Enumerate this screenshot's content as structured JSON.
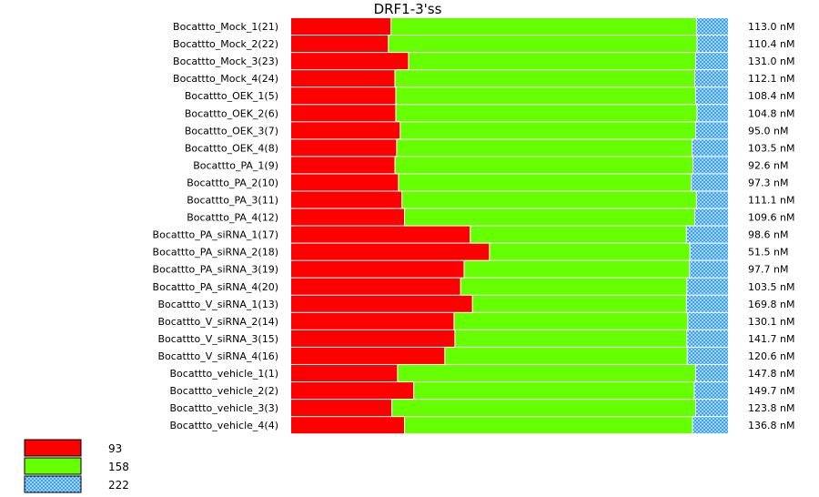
{
  "chart_data": {
    "type": "bar",
    "orientation": "horizontal",
    "stacked": true,
    "normalized_to_percent": true,
    "title": "DRF1-3'ss",
    "legend_placement": "bottom-left",
    "grid": false,
    "series": [
      {
        "name": "93",
        "color": "#ff0000",
        "pattern": "solid"
      },
      {
        "name": "158",
        "color": "#66ff00",
        "pattern": "solid"
      },
      {
        "name": "222",
        "color": "#1e90ff",
        "pattern": "crosshatch"
      }
    ],
    "rows": [
      {
        "label": "Bocattto_Mock_1(21)",
        "concentration": "113.0 nM",
        "values": [
          22.9,
          69.8,
          7.3
        ]
      },
      {
        "label": "Bocattto_Mock_2(22)",
        "concentration": "110.4 nM",
        "values": [
          22.3,
          70.5,
          7.2
        ]
      },
      {
        "label": "Bocattto_Mock_3(23)",
        "concentration": "131.0 nM",
        "values": [
          26.9,
          65.6,
          7.5
        ]
      },
      {
        "label": "Bocattto_Mock_4(24)",
        "concentration": "112.1 nM",
        "values": [
          23.8,
          68.5,
          7.7
        ]
      },
      {
        "label": "Bocattto_OEK_1(5)",
        "concentration": "108.4 nM",
        "values": [
          24.0,
          68.5,
          7.5
        ]
      },
      {
        "label": "Bocattto_OEK_2(6)",
        "concentration": "104.8 nM",
        "values": [
          24.0,
          68.8,
          7.2
        ]
      },
      {
        "label": "Bocattto_OEK_3(7)",
        "concentration": "95.0 nM",
        "values": [
          25.0,
          67.5,
          7.5
        ]
      },
      {
        "label": "Bocattto_OEK_4(8)",
        "concentration": "103.5 nM",
        "values": [
          24.2,
          67.5,
          8.3
        ]
      },
      {
        "label": "Bocattto_PA_1(9)",
        "concentration": "92.6 nM",
        "values": [
          23.8,
          68.1,
          8.1
        ]
      },
      {
        "label": "Bocattto_PA_2(10)",
        "concentration": "97.3 nM",
        "values": [
          24.6,
          66.9,
          8.5
        ]
      },
      {
        "label": "Bocattto_PA_3(11)",
        "concentration": "111.1 nM",
        "values": [
          25.4,
          67.3,
          7.3
        ]
      },
      {
        "label": "Bocattto_PA_4(12)",
        "concentration": "109.6 nM",
        "values": [
          26.0,
          66.3,
          7.7
        ]
      },
      {
        "label": "Bocattto_PA_siRNA_1(17)",
        "concentration": "98.6 nM",
        "values": [
          41.0,
          49.4,
          9.6
        ]
      },
      {
        "label": "Bocattto_PA_siRNA_2(18)",
        "concentration": "51.5 nM",
        "values": [
          45.4,
          45.8,
          8.8
        ]
      },
      {
        "label": "Bocattto_PA_siRNA_3(19)",
        "concentration": "97.7 nM",
        "values": [
          39.6,
          51.5,
          8.9
        ]
      },
      {
        "label": "Bocattto_PA_siRNA_4(20)",
        "concentration": "103.5 nM",
        "values": [
          38.8,
          51.7,
          9.5
        ]
      },
      {
        "label": "Bocattto_V_siRNA_1(13)",
        "concentration": "169.8 nM",
        "values": [
          41.5,
          48.9,
          9.6
        ]
      },
      {
        "label": "Bocattto_V_siRNA_2(14)",
        "concentration": "130.1 nM",
        "values": [
          37.3,
          53.4,
          9.3
        ]
      },
      {
        "label": "Bocattto_V_siRNA_3(15)",
        "concentration": "141.7 nM",
        "values": [
          37.5,
          53.0,
          9.5
        ]
      },
      {
        "label": "Bocattto_V_siRNA_4(16)",
        "concentration": "120.6 nM",
        "values": [
          35.2,
          55.4,
          9.4
        ]
      },
      {
        "label": "Bocattto_vehicle_1(1)",
        "concentration": "147.8 nM",
        "values": [
          24.4,
          68.1,
          7.5
        ]
      },
      {
        "label": "Bocattto_vehicle_2(2)",
        "concentration": "149.7 nM",
        "values": [
          28.1,
          64.1,
          7.8
        ]
      },
      {
        "label": "Bocattto_vehicle_3(3)",
        "concentration": "123.8 nM",
        "values": [
          23.1,
          69.4,
          7.5
        ]
      },
      {
        "label": "Bocattto_vehicle_4(4)",
        "concentration": "136.8 nM",
        "values": [
          26.0,
          65.8,
          8.2
        ]
      }
    ]
  }
}
